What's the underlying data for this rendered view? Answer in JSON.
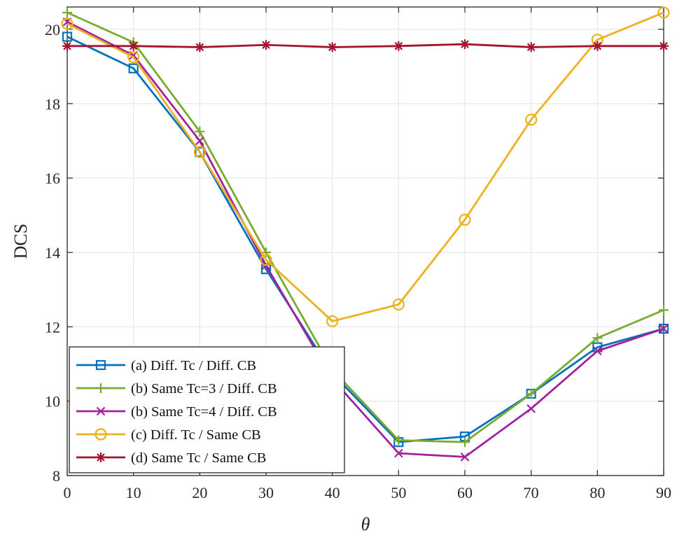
{
  "chart_data": {
    "type": "line",
    "xlabel": "θ",
    "ylabel": "DCS",
    "xlim": [
      0,
      90
    ],
    "ylim": [
      8,
      20.6
    ],
    "xticks": [
      0,
      10,
      20,
      30,
      40,
      50,
      60,
      70,
      80,
      90
    ],
    "yticks": [
      8,
      10,
      12,
      14,
      16,
      18,
      20
    ],
    "grid": true,
    "legend_position": "bottom-left",
    "x": [
      0,
      10,
      20,
      30,
      40,
      50,
      60,
      70,
      80,
      90
    ],
    "series": [
      {
        "name": "(a) Diff. Tc / Diff. CB",
        "color": "#0072BD",
        "marker": "square",
        "values": [
          19.8,
          18.95,
          16.7,
          13.55,
          10.75,
          8.9,
          9.05,
          10.2,
          11.45,
          11.95
        ]
      },
      {
        "name": "(b) Same Tc=3 / Diff. CB",
        "color": "#77AC30",
        "marker": "plus",
        "values": [
          20.45,
          19.65,
          17.25,
          14.0,
          10.85,
          8.95,
          8.9,
          10.2,
          11.7,
          12.45
        ]
      },
      {
        "name": "(b) Same Tc=4 / Diff. CB",
        "color": "#A2229E",
        "marker": "x",
        "values": [
          20.2,
          19.3,
          17.0,
          13.65,
          10.6,
          8.6,
          8.5,
          9.8,
          11.35,
          11.95
        ]
      },
      {
        "name": "(c) Diff. Tc / Same CB",
        "color": "#EDB120",
        "marker": "circle",
        "values": [
          20.15,
          19.25,
          16.7,
          13.8,
          12.15,
          12.6,
          14.88,
          17.57,
          19.72,
          20.45
        ]
      },
      {
        "name": "(d) Same Tc / Same CB",
        "color": "#A2142F",
        "marker": "asterisk",
        "values": [
          19.55,
          19.55,
          19.52,
          19.58,
          19.52,
          19.55,
          19.6,
          19.52,
          19.55,
          19.55
        ]
      }
    ]
  }
}
